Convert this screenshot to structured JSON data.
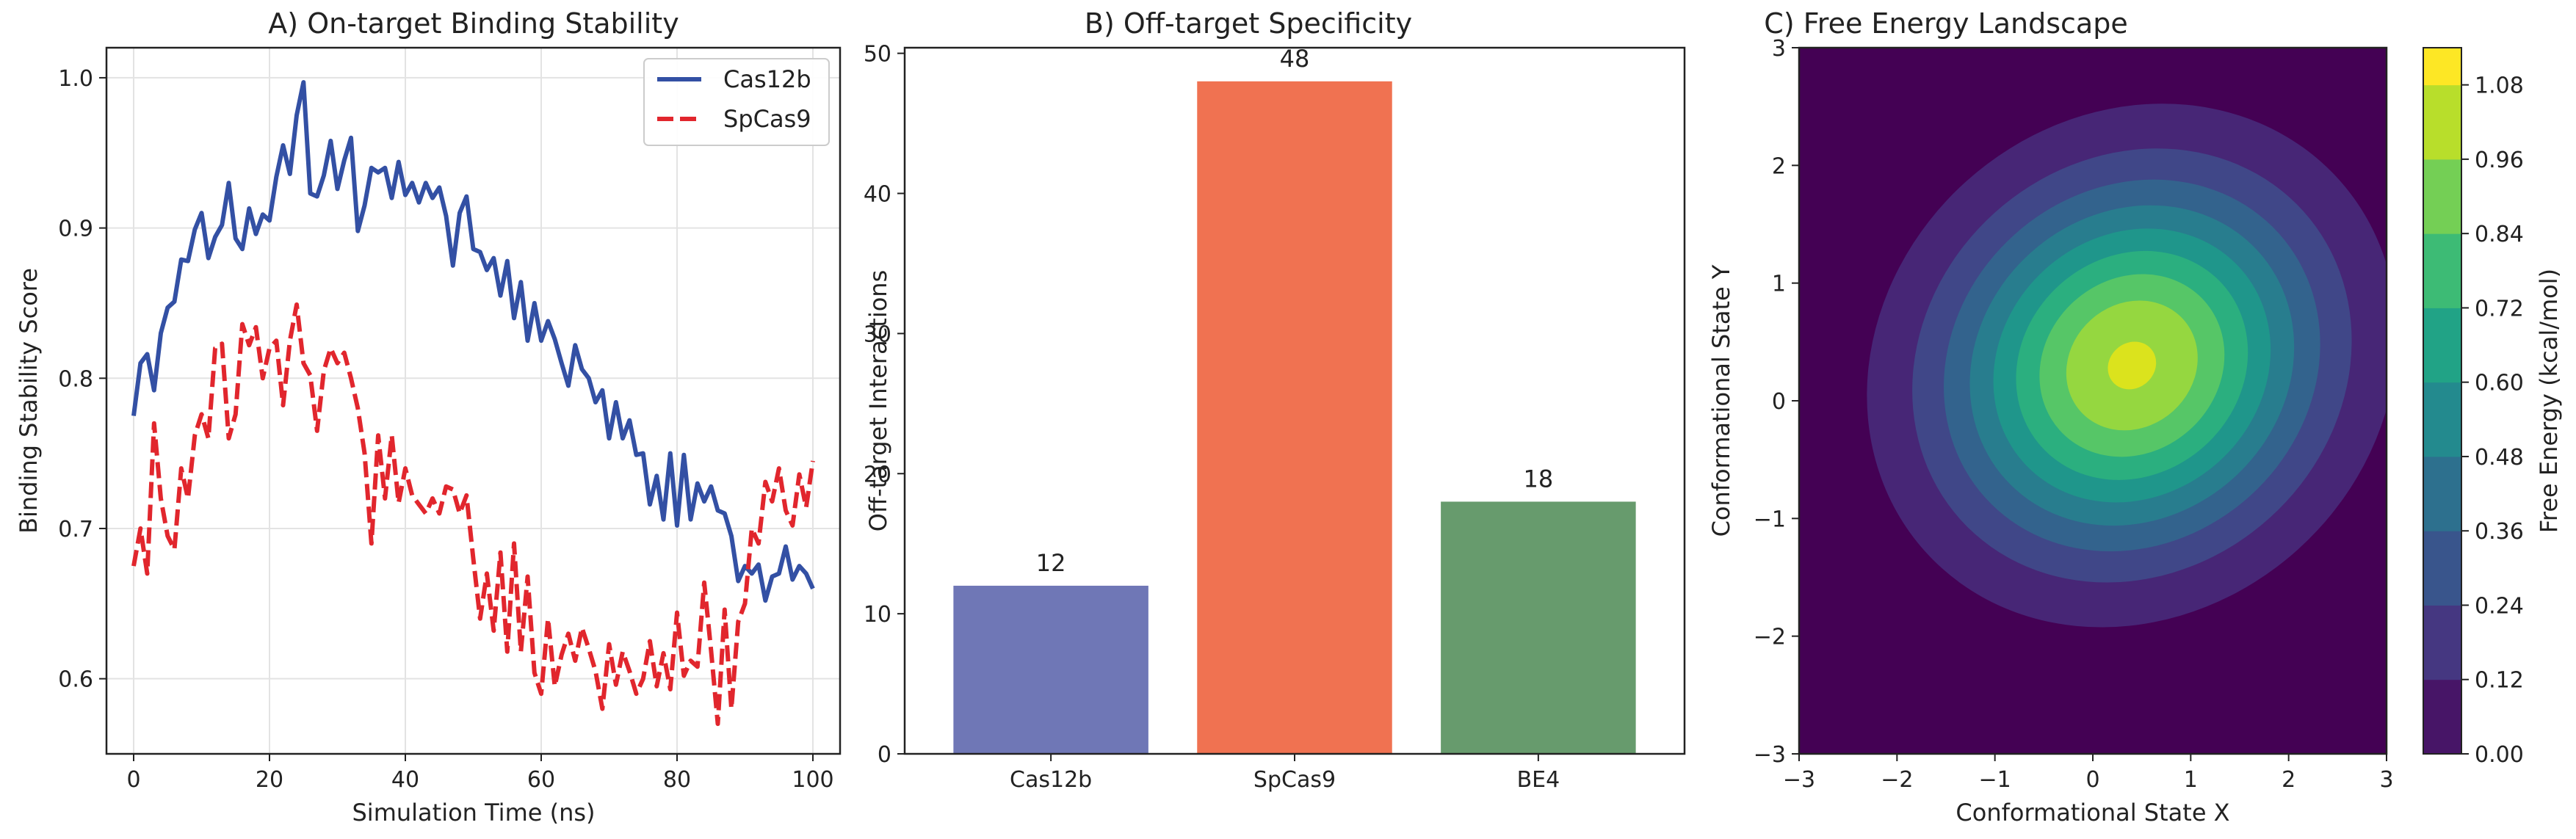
{
  "chart_data": [
    {
      "type": "line",
      "title": "A) On-target Binding Stability",
      "xlabel": "Simulation Time (ns)",
      "ylabel": "Binding Stability Score",
      "xlim": [
        -4,
        104
      ],
      "ylim": [
        0.55,
        1.02
      ],
      "xticks": [
        "0",
        "20",
        "40",
        "60",
        "80",
        "100"
      ],
      "yticks": [
        "0.6",
        "0.7",
        "0.8",
        "0.9",
        "1.0"
      ],
      "grid": true,
      "legend": "top-right",
      "x": [
        0,
        1,
        2,
        3,
        4,
        5,
        6,
        7,
        8,
        9,
        10,
        11,
        12,
        13,
        14,
        15,
        16,
        17,
        18,
        19,
        20,
        21,
        22,
        23,
        24,
        25,
        26,
        27,
        28,
        29,
        30,
        31,
        32,
        33,
        34,
        35,
        36,
        37,
        38,
        39,
        40,
        41,
        42,
        43,
        44,
        45,
        46,
        47,
        48,
        49,
        50,
        51,
        52,
        53,
        54,
        55,
        56,
        57,
        58,
        59,
        60,
        61,
        62,
        63,
        64,
        65,
        66,
        67,
        68,
        69,
        70,
        71,
        72,
        73,
        74,
        75,
        76,
        77,
        78,
        79,
        80,
        81,
        82,
        83,
        84,
        85,
        86,
        87,
        88,
        89,
        90,
        91,
        92,
        93,
        94,
        95,
        96,
        97,
        98,
        99,
        100
      ],
      "series": [
        {
          "name": "Cas12b",
          "color": "#3350a4",
          "dash": "solid",
          "values": [
            0.775,
            0.81,
            0.816,
            0.792,
            0.83,
            0.847,
            0.851,
            0.879,
            0.878,
            0.899,
            0.91,
            0.88,
            0.894,
            0.902,
            0.93,
            0.893,
            0.886,
            0.913,
            0.896,
            0.909,
            0.905,
            0.934,
            0.955,
            0.936,
            0.975,
            0.997,
            0.923,
            0.921,
            0.935,
            0.958,
            0.926,
            0.945,
            0.96,
            0.898,
            0.915,
            0.94,
            0.937,
            0.94,
            0.92,
            0.944,
            0.922,
            0.93,
            0.917,
            0.93,
            0.92,
            0.927,
            0.908,
            0.875,
            0.91,
            0.921,
            0.886,
            0.884,
            0.872,
            0.88,
            0.855,
            0.878,
            0.84,
            0.864,
            0.825,
            0.85,
            0.825,
            0.838,
            0.826,
            0.81,
            0.795,
            0.822,
            0.806,
            0.8,
            0.784,
            0.792,
            0.76,
            0.784,
            0.76,
            0.772,
            0.749,
            0.75,
            0.716,
            0.735,
            0.706,
            0.75,
            0.702,
            0.749,
            0.706,
            0.73,
            0.718,
            0.728,
            0.712,
            0.71,
            0.695,
            0.665,
            0.675,
            0.67,
            0.676,
            0.652,
            0.668,
            0.67,
            0.688,
            0.666,
            0.675,
            0.67,
            0.66
          ]
        },
        {
          "name": "SpCas9",
          "color": "#e1262d",
          "dash": "dashed",
          "values": [
            0.675,
            0.7,
            0.67,
            0.77,
            0.72,
            0.695,
            0.686,
            0.74,
            0.72,
            0.762,
            0.776,
            0.76,
            0.82,
            0.823,
            0.76,
            0.776,
            0.836,
            0.822,
            0.834,
            0.8,
            0.82,
            0.825,
            0.782,
            0.825,
            0.849,
            0.81,
            0.802,
            0.765,
            0.805,
            0.82,
            0.81,
            0.817,
            0.8,
            0.78,
            0.75,
            0.69,
            0.762,
            0.72,
            0.762,
            0.717,
            0.74,
            0.722,
            0.716,
            0.71,
            0.72,
            0.71,
            0.728,
            0.726,
            0.71,
            0.722,
            0.68,
            0.64,
            0.67,
            0.632,
            0.684,
            0.618,
            0.69,
            0.618,
            0.668,
            0.604,
            0.59,
            0.64,
            0.595,
            0.616,
            0.63,
            0.612,
            0.634,
            0.62,
            0.605,
            0.58,
            0.623,
            0.596,
            0.618,
            0.605,
            0.59,
            0.6,
            0.625,
            0.595,
            0.617,
            0.593,
            0.644,
            0.602,
            0.612,
            0.608,
            0.664,
            0.619,
            0.57,
            0.646,
            0.58,
            0.638,
            0.65,
            0.7,
            0.69,
            0.731,
            0.718,
            0.74,
            0.712,
            0.702,
            0.736,
            0.714,
            0.745
          ]
        }
      ]
    },
    {
      "type": "bar",
      "title": "B) Off-target Specificity",
      "xlabel": "",
      "ylabel": "Off-target Interactions",
      "categories": [
        "Cas12b",
        "SpCas9",
        "BE4"
      ],
      "values": [
        12,
        48,
        18
      ],
      "data_labels": [
        "12",
        "48",
        "18"
      ],
      "colors": [
        "#6f77b6",
        "#f07251",
        "#679b6d"
      ],
      "ylim": [
        0,
        50.4
      ],
      "yticks": [
        "0",
        "10",
        "20",
        "30",
        "40",
        "50"
      ],
      "grid": false
    },
    {
      "type": "heatmap",
      "title": "C) Free Energy Landscape",
      "xlabel": "Conformational State X",
      "ylabel": "Conformational State Y",
      "xlim": [
        -3,
        3
      ],
      "ylim": [
        -3,
        3
      ],
      "xticks": [
        "−3",
        "−2",
        "−1",
        "0",
        "1",
        "2",
        "3"
      ],
      "yticks": [
        "−3",
        "−2",
        "−1",
        "0",
        "1",
        "2",
        "3"
      ],
      "peak": {
        "x": 0.4,
        "y": 0.3,
        "value": 1.1
      },
      "colorbar": {
        "label": "Free Energy (kcal/mol)",
        "range": [
          0,
          1.14
        ],
        "ticks": [
          "0.00",
          "0.12",
          "0.24",
          "0.36",
          "0.48",
          "0.60",
          "0.72",
          "0.84",
          "0.96",
          "1.08"
        ],
        "colormap": "viridis"
      }
    }
  ]
}
